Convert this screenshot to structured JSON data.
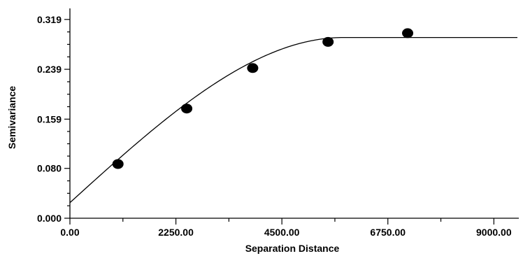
{
  "chart_data": {
    "type": "scatter",
    "title": "",
    "xlabel": "Separation Distance",
    "ylabel": "Semivariance",
    "xlim": [
      0,
      9500
    ],
    "ylim": [
      0,
      0.33
    ],
    "x_ticks": [
      0,
      2250,
      4500,
      6750,
      9000
    ],
    "x_tick_labels": [
      "0.00",
      "2250.00",
      "4500.00",
      "6750.00",
      "9000.00"
    ],
    "y_ticks": [
      0.0,
      0.08,
      0.159,
      0.239,
      0.319
    ],
    "y_tick_labels": [
      "0.000",
      "0.080",
      "0.159",
      "0.239",
      "0.319"
    ],
    "grid": false,
    "series": [
      {
        "type": "scatter",
        "x": [
          1020,
          2480,
          3880,
          5480,
          7170
        ],
        "y": [
          0.087,
          0.176,
          0.241,
          0.283,
          0.297
        ]
      },
      {
        "type": "line",
        "model": "spherical",
        "nugget": 0.025,
        "sill": 0.29,
        "range": 5800,
        "x_max": 9500
      }
    ]
  }
}
